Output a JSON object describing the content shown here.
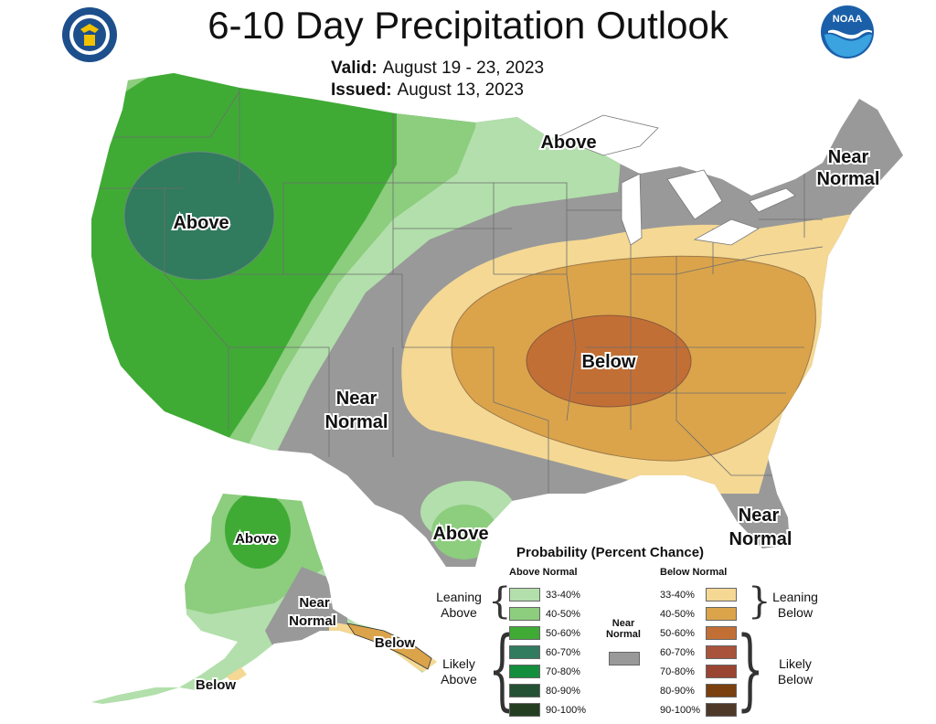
{
  "title": "6-10 Day Precipitation Outlook",
  "valid_label": "Valid:",
  "valid_value": "August 19 - 23, 2023",
  "issued_label": "Issued:",
  "issued_value": "August 13, 2023",
  "logos": {
    "left": "doc-seal-icon",
    "right": "noaa-logo-icon",
    "right_text": "NOAA"
  },
  "colors": {
    "above_33_40": "#b2dfab",
    "above_40_50": "#8ccd7e",
    "above_50_60": "#3fab35",
    "above_60_70": "#317b5e",
    "above_70_80": "#138e3c",
    "above_80_90": "#245133",
    "above_90_100": "#243e22",
    "below_33_40": "#f4d894",
    "below_40_50": "#dba44b",
    "below_50_60": "#c26f36",
    "below_60_70": "#a9533c",
    "below_70_80": "#9a4532",
    "below_80_90": "#7a4010",
    "below_90_100": "#4e3929",
    "near_normal": "#999999"
  },
  "map_labels": {
    "nw_above": "Above",
    "glakes_above": "Above",
    "ne_near_line1": "Near",
    "ne_near_line2": "Normal",
    "sw_near_line1": "Near",
    "sw_near_line2": "Normal",
    "se_below": "Below",
    "fl_near_line1": "Near",
    "fl_near_line2": "Normal",
    "tx_above": "Above",
    "ak_above": "Above",
    "ak_near_line1": "Near",
    "ak_near_line2": "Normal",
    "ak_below_panhandle": "Below",
    "ak_below_aleutians": "Below"
  },
  "legend": {
    "title": "Probability (Percent Chance)",
    "above_header": "Above Normal",
    "below_header": "Below Normal",
    "near_label_line1": "Near",
    "near_label_line2": "Normal",
    "leaning_above_line1": "Leaning",
    "leaning_above_line2": "Above",
    "likely_above_line1": "Likely",
    "likely_above_line2": "Above",
    "leaning_below_line1": "Leaning",
    "leaning_below_line2": "Below",
    "likely_below_line1": "Likely",
    "likely_below_line2": "Below",
    "above_ranges": [
      "33-40%",
      "40-50%",
      "50-60%",
      "60-70%",
      "70-80%",
      "80-90%",
      "90-100%"
    ],
    "below_ranges": [
      "33-40%",
      "40-50%",
      "50-60%",
      "60-70%",
      "70-80%",
      "80-90%",
      "90-100%"
    ]
  }
}
